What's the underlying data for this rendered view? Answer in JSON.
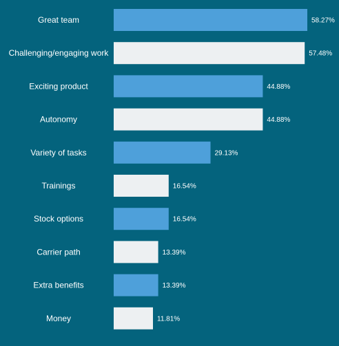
{
  "chart_data": {
    "type": "bar",
    "orientation": "horizontal",
    "categories": [
      "Great team",
      "Challenging/engaging work",
      "Exciting product",
      "Autonomy",
      "Variety of tasks",
      "Trainings",
      "Stock options",
      "Carrier path",
      "Extra benefits",
      "Money"
    ],
    "values": [
      58.27,
      57.48,
      44.88,
      44.88,
      29.13,
      16.54,
      16.54,
      13.39,
      13.39,
      11.81
    ],
    "value_labels": [
      "58.27%",
      "57.48%",
      "44.88%",
      "44.88%",
      "29.13%",
      "16.54%",
      "16.54%",
      "13.39%",
      "13.39%",
      "11.81%"
    ],
    "title": "",
    "xlabel": "",
    "ylabel": "",
    "xlim": [
      0,
      60
    ],
    "grid": false,
    "legend": "none"
  },
  "colors": {
    "background": "#04637d",
    "bar_blue": "#4ea0da",
    "bar_light": "#edf0f2",
    "text": "#ffffff"
  }
}
